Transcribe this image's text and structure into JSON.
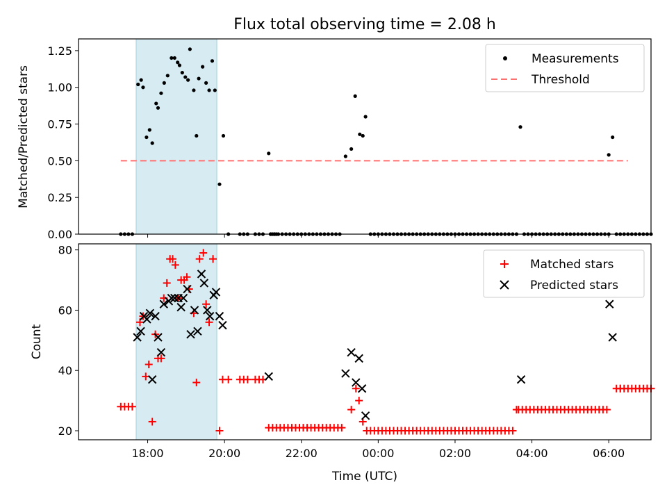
{
  "chart_data": {
    "title": "Flux total observing time = 2.08 h",
    "time_axis_hours_note": "hours since 00:00 UTC of first night",
    "xlim": [
      16.2,
      31.1
    ],
    "xlabel": "Time (UTC)",
    "xtick_values": [
      18,
      20,
      22,
      24,
      26,
      28,
      30
    ],
    "xtick_labels": [
      "18:00",
      "20:00",
      "22:00",
      "00:00",
      "02:00",
      "04:00",
      "06:00"
    ],
    "highlight_span": [
      17.7,
      19.8
    ],
    "top": {
      "type": "scatter",
      "ylabel": "Matched/Predicted stars",
      "ylim": [
        0,
        1.33
      ],
      "ytick_values": [
        0,
        0.25,
        0.5,
        0.75,
        1.0,
        1.25
      ],
      "ytick_labels": [
        "0.00",
        "0.25",
        "0.50",
        "0.75",
        "1.00",
        "1.25"
      ],
      "threshold": {
        "value": 0.5,
        "x_range": [
          17.3,
          30.5
        ]
      },
      "legend": {
        "placement": "upper-right",
        "measurements_label": "Measurements",
        "threshold_label": "Threshold"
      },
      "points": [
        [
          17.75,
          1.02
        ],
        [
          17.83,
          1.05
        ],
        [
          17.88,
          1.0
        ],
        [
          17.97,
          0.66
        ],
        [
          18.05,
          0.71
        ],
        [
          18.12,
          0.62
        ],
        [
          18.22,
          0.89
        ],
        [
          18.27,
          0.86
        ],
        [
          18.35,
          0.96
        ],
        [
          18.43,
          1.03
        ],
        [
          18.52,
          1.08
        ],
        [
          18.62,
          1.2
        ],
        [
          18.7,
          1.2
        ],
        [
          18.78,
          1.17
        ],
        [
          18.83,
          1.15
        ],
        [
          18.9,
          1.1
        ],
        [
          18.98,
          1.07
        ],
        [
          19.05,
          1.05
        ],
        [
          19.1,
          1.26
        ],
        [
          19.2,
          0.98
        ],
        [
          19.27,
          0.67
        ],
        [
          19.33,
          1.06
        ],
        [
          19.43,
          1.14
        ],
        [
          19.52,
          1.03
        ],
        [
          19.6,
          0.98
        ],
        [
          19.68,
          1.18
        ],
        [
          19.75,
          0.98
        ],
        [
          19.87,
          0.34
        ],
        [
          19.97,
          0.67
        ],
        [
          21.15,
          0.55
        ],
        [
          23.15,
          0.53
        ],
        [
          23.3,
          0.58
        ],
        [
          23.4,
          0.94
        ],
        [
          23.52,
          0.68
        ],
        [
          23.6,
          0.67
        ],
        [
          23.67,
          0.8
        ],
        [
          27.7,
          0.73
        ],
        [
          30.0,
          0.54
        ],
        [
          30.1,
          0.66
        ]
      ],
      "zero_ranges": [
        [
          17.3,
          17.6
        ],
        [
          20.1,
          20.1
        ],
        [
          20.4,
          20.6
        ],
        [
          20.8,
          21.0
        ],
        [
          21.2,
          23.0
        ],
        [
          23.8,
          27.6
        ],
        [
          27.8,
          30.0
        ],
        [
          30.2,
          31.1
        ]
      ],
      "zero_points": [
        21.2,
        21.25,
        21.3,
        21.35
      ]
    },
    "bottom": {
      "type": "scatter",
      "ylabel": "Count",
      "ylim": [
        17,
        82
      ],
      "ytick_values": [
        20,
        40,
        60,
        80
      ],
      "ytick_labels": [
        "20",
        "40",
        "60",
        "80"
      ],
      "legend": {
        "placement": "upper-right",
        "matched_label": "Matched stars",
        "predicted_label": "Predicted stars"
      },
      "matched": [
        [
          17.3,
          28
        ],
        [
          17.4,
          28
        ],
        [
          17.5,
          28
        ],
        [
          17.6,
          28
        ],
        [
          17.8,
          56
        ],
        [
          17.88,
          58
        ],
        [
          17.95,
          38
        ],
        [
          18.03,
          42
        ],
        [
          18.12,
          23
        ],
        [
          18.2,
          52
        ],
        [
          18.27,
          44
        ],
        [
          18.35,
          44
        ],
        [
          18.42,
          64
        ],
        [
          18.5,
          69
        ],
        [
          18.58,
          77
        ],
        [
          18.65,
          77
        ],
        [
          18.72,
          75
        ],
        [
          18.8,
          64
        ],
        [
          18.87,
          70
        ],
        [
          18.95,
          70
        ],
        [
          19.02,
          71
        ],
        [
          19.08,
          67
        ],
        [
          19.2,
          59
        ],
        [
          19.27,
          36
        ],
        [
          19.35,
          77
        ],
        [
          19.45,
          79
        ],
        [
          19.52,
          62
        ],
        [
          19.6,
          56
        ],
        [
          19.7,
          77
        ],
        [
          19.87,
          20
        ],
        [
          19.95,
          37
        ],
        [
          20.1,
          37
        ],
        [
          20.4,
          37
        ],
        [
          20.5,
          37
        ],
        [
          20.6,
          37
        ],
        [
          20.8,
          37
        ],
        [
          20.9,
          37
        ],
        [
          21.0,
          37
        ],
        [
          23.3,
          27
        ],
        [
          23.42,
          34
        ],
        [
          23.5,
          30
        ],
        [
          23.6,
          23
        ],
        [
          27.6,
          27
        ],
        [
          30.3,
          34
        ],
        [
          31.0,
          34
        ]
      ],
      "matched_runs": [
        [
          21.15,
          23.05,
          21
        ],
        [
          23.7,
          27.5,
          20
        ],
        [
          27.65,
          29.95,
          27
        ],
        [
          30.2,
          31.1,
          34
        ]
      ],
      "predicted": [
        [
          17.73,
          51
        ],
        [
          17.82,
          53
        ],
        [
          17.9,
          58
        ],
        [
          17.98,
          57
        ],
        [
          18.06,
          59
        ],
        [
          18.12,
          37
        ],
        [
          18.2,
          58
        ],
        [
          18.27,
          51
        ],
        [
          18.35,
          46
        ],
        [
          18.42,
          62
        ],
        [
          18.55,
          63
        ],
        [
          18.62,
          64
        ],
        [
          18.7,
          64
        ],
        [
          18.8,
          64
        ],
        [
          18.87,
          61
        ],
        [
          18.93,
          64
        ],
        [
          19.03,
          67
        ],
        [
          19.12,
          52
        ],
        [
          19.22,
          60
        ],
        [
          19.3,
          53
        ],
        [
          19.4,
          72
        ],
        [
          19.47,
          69
        ],
        [
          19.55,
          60
        ],
        [
          19.62,
          58
        ],
        [
          19.72,
          65
        ],
        [
          19.78,
          66
        ],
        [
          19.87,
          58
        ],
        [
          19.95,
          55
        ],
        [
          21.15,
          38
        ],
        [
          23.15,
          39
        ],
        [
          23.3,
          46
        ],
        [
          23.42,
          36
        ],
        [
          23.5,
          44
        ],
        [
          23.58,
          34
        ],
        [
          23.67,
          25
        ],
        [
          27.72,
          37
        ],
        [
          30.02,
          62
        ],
        [
          30.1,
          51
        ]
      ]
    }
  }
}
